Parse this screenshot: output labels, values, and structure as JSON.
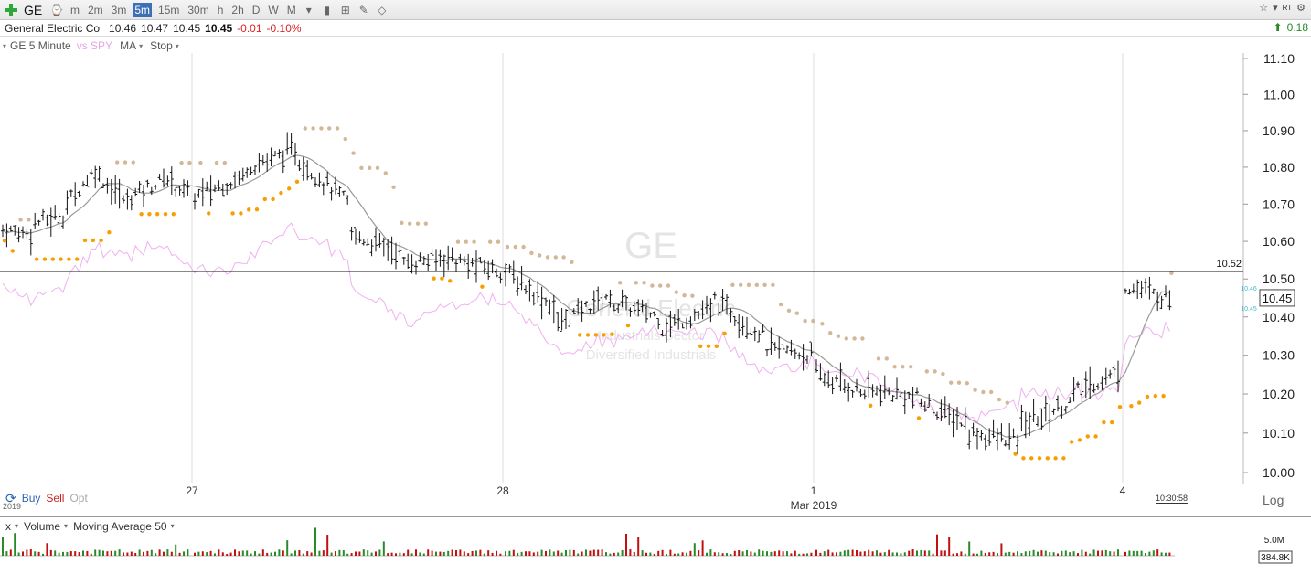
{
  "toolbar": {
    "symbol": "GE",
    "periods": [
      "m",
      "2m",
      "3m",
      "5m",
      "15m",
      "30m",
      "h",
      "2h",
      "D",
      "W",
      "M"
    ],
    "active_period": "5m",
    "rt_label": "RT"
  },
  "quote": {
    "name": "General Electric Co",
    "open": "10.46",
    "high": "10.47",
    "low": "10.45",
    "last": "10.45",
    "change": "-0.01",
    "change_pct": "-0.10%",
    "right_change": "0.18"
  },
  "legend": {
    "symbol_interval": "GE 5 Minute",
    "compare": "vs SPY",
    "ma": "MA",
    "stop": "Stop"
  },
  "trade": {
    "buy": "Buy",
    "sell": "Sell",
    "opt": "Opt",
    "year": "2019"
  },
  "x_axis": {
    "labels": [
      "27",
      "28",
      "1",
      "4"
    ],
    "month_label": "Mar 2019",
    "scale": "Log",
    "time": "10:30:58"
  },
  "volume_panel": {
    "close": "x",
    "volume": "Volume",
    "ma": "Moving Average 50",
    "scale_top": "5.0M",
    "last_volume": "384.8K"
  },
  "watermark": {
    "symbol": "GE",
    "name": "General Electric",
    "sector": "Industrials Sector",
    "industry": "Diversified Industrials"
  },
  "colors": {
    "candle": "#111111",
    "ma_line": "#999999",
    "spy": "#f0b0f0",
    "stop_above": "#d2b896",
    "stop_below": "#f5a000",
    "vol_up": "#2a8a2a",
    "vol_down": "#c01010",
    "ref_line": "#111111"
  },
  "chart_data": {
    "type": "ohlc",
    "price_axis": {
      "min": 10.0,
      "max": 11.1,
      "ticks": [
        "11.10",
        "11.00",
        "10.90",
        "10.80",
        "10.70",
        "10.60",
        "10.50",
        "10.40",
        "10.30",
        "10.20",
        "10.10",
        "10.00"
      ]
    },
    "reference_line": {
      "value": 10.52,
      "label": "10.52"
    },
    "last_price_label": "10.45",
    "mini_labels": [
      "10.46",
      "10.45"
    ],
    "days": [
      {
        "label": "27",
        "segments": [
          [
            10.63,
            10.62
          ],
          [
            10.65,
            10.67
          ],
          [
            10.7,
            10.8
          ],
          [
            10.78,
            10.7
          ],
          [
            10.72,
            10.76
          ],
          [
            10.78,
            10.72
          ]
        ]
      },
      {
        "label": "28",
        "segments": [
          [
            10.72,
            10.78
          ],
          [
            10.8,
            10.85
          ],
          [
            10.82,
            10.7
          ],
          [
            10.62,
            10.57
          ],
          [
            10.54,
            10.56
          ],
          [
            10.55,
            10.52
          ]
        ]
      },
      {
        "label": "1",
        "segments": [
          [
            10.52,
            10.42
          ],
          [
            10.38,
            10.46
          ],
          [
            10.44,
            10.4
          ],
          [
            10.37,
            10.42
          ],
          [
            10.45,
            10.35
          ],
          [
            10.32,
            10.3
          ]
        ]
      },
      {
        "label": "4",
        "segments": [
          [
            10.25,
            10.2
          ],
          [
            10.21,
            10.19
          ],
          [
            10.18,
            10.12
          ],
          [
            10.1,
            10.08
          ],
          [
            10.12,
            10.18
          ],
          [
            10.2,
            10.26
          ]
        ]
      },
      {
        "label": "4 (cont.)",
        "segments": [
          [
            10.48,
            10.47
          ],
          [
            10.46,
            10.45
          ]
        ]
      }
    ]
  }
}
